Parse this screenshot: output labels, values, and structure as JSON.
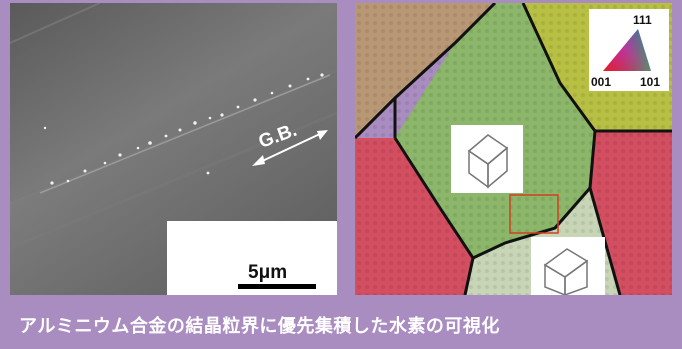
{
  "sem_panel": {
    "boundary_label": "G.B.",
    "scale_bar_label": "5μm"
  },
  "ebsd_panel": {
    "legend": {
      "top_label": "111",
      "left_label": "001",
      "right_label": "101"
    },
    "grain_colors": {
      "tan": "#b89774",
      "yellow": "#b7c043",
      "green": "#8cb66a",
      "red": "#d34e60",
      "pale_green": "#c8d6b7",
      "purple": "#7e3fb6"
    }
  },
  "caption": "アルミニウム合金の結晶粒界に優先集積した水素の可視化",
  "colors": {
    "frame": "#a98cc0",
    "caption_text": "#ffffff"
  }
}
